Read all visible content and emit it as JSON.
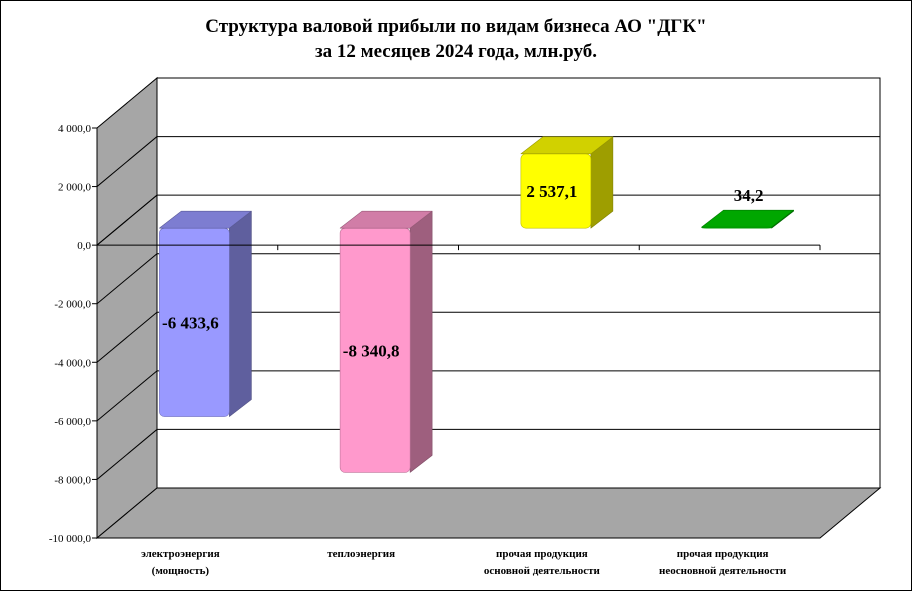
{
  "chart_data": {
    "type": "bar",
    "title": "Структура  валовой прибыли  по видам бизнеса АО \"ДГК\"\nза 12 месяцев 2024 года, млн.руб.",
    "categories": [
      [
        "электроэнергия",
        "(мощность)"
      ],
      [
        "теплоэнергия"
      ],
      [
        "прочая  продукция",
        "основной  деятельности"
      ],
      [
        "прочая  продукция",
        "неосновной  деятельности"
      ]
    ],
    "values": [
      -6433.6,
      -8340.8,
      2537.1,
      34.2
    ],
    "value_labels": [
      "-6 433,6",
      "-8 340,8",
      "2 537,1",
      "34,2"
    ],
    "ylim": [
      -10000,
      4000
    ],
    "yticks": [
      4000,
      2000,
      0,
      -2000,
      -4000,
      -6000,
      -8000,
      -10000
    ],
    "ytick_labels": [
      "4 000,0",
      "2 000,0",
      "0,0",
      "-2 000,0",
      "-4 000,0",
      "-6 000,0",
      "-8 000,0",
      "-10 000,0"
    ],
    "xlabel": "",
    "ylabel": "",
    "grid": true,
    "legend": "none",
    "colors": [
      "#9999ff",
      "#ff99cc",
      "#ffff00",
      "#00cc00"
    ]
  }
}
